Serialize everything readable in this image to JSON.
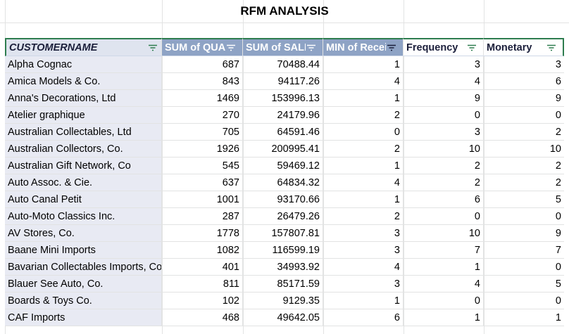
{
  "title": "RFM ANALYSIS",
  "headers": [
    {
      "label": "CUSTOMERNAME"
    },
    {
      "label": "SUM of QUA"
    },
    {
      "label": "SUM of SALI"
    },
    {
      "label": "MIN of Recei"
    },
    {
      "label": "Frequency"
    },
    {
      "label": "Monetary"
    }
  ],
  "rows": [
    {
      "customer": "Alpha Cognac",
      "qty": "687",
      "sales": "70488.44",
      "recency": "1",
      "frequency": "3",
      "monetary": "3"
    },
    {
      "customer": "Amica Models & Co.",
      "qty": "843",
      "sales": "94117.26",
      "recency": "4",
      "frequency": "4",
      "monetary": "6"
    },
    {
      "customer": "Anna's Decorations, Ltd",
      "qty": "1469",
      "sales": "153996.13",
      "recency": "1",
      "frequency": "9",
      "monetary": "9"
    },
    {
      "customer": "Atelier graphique",
      "qty": "270",
      "sales": "24179.96",
      "recency": "2",
      "frequency": "0",
      "monetary": "0"
    },
    {
      "customer": "Australian Collectables, Ltd",
      "qty": "705",
      "sales": "64591.46",
      "recency": "0",
      "frequency": "3",
      "monetary": "2"
    },
    {
      "customer": "Australian Collectors, Co.",
      "qty": "1926",
      "sales": "200995.41",
      "recency": "2",
      "frequency": "10",
      "monetary": "10"
    },
    {
      "customer": "Australian Gift Network, Co",
      "qty": "545",
      "sales": "59469.12",
      "recency": "1",
      "frequency": "2",
      "monetary": "2"
    },
    {
      "customer": "Auto Assoc. & Cie.",
      "qty": "637",
      "sales": "64834.32",
      "recency": "4",
      "frequency": "2",
      "monetary": "2"
    },
    {
      "customer": "Auto Canal Petit",
      "qty": "1001",
      "sales": "93170.66",
      "recency": "1",
      "frequency": "6",
      "monetary": "5"
    },
    {
      "customer": "Auto-Moto Classics Inc.",
      "qty": "287",
      "sales": "26479.26",
      "recency": "2",
      "frequency": "0",
      "monetary": "0"
    },
    {
      "customer": "AV Stores, Co.",
      "qty": "1778",
      "sales": "157807.81",
      "recency": "3",
      "frequency": "10",
      "monetary": "9"
    },
    {
      "customer": "Baane Mini Imports",
      "qty": "1082",
      "sales": "116599.19",
      "recency": "3",
      "frequency": "7",
      "monetary": "7"
    },
    {
      "customer": "Bavarian Collectables Imports, Co",
      "qty": "401",
      "sales": "34993.92",
      "recency": "4",
      "frequency": "1",
      "monetary": "0"
    },
    {
      "customer": "Blauer See Auto, Co.",
      "qty": "811",
      "sales": "85171.59",
      "recency": "3",
      "frequency": "4",
      "monetary": "5"
    },
    {
      "customer": "Boards & Toys Co.",
      "qty": "102",
      "sales": "9129.35",
      "recency": "1",
      "frequency": "0",
      "monetary": "0"
    },
    {
      "customer": "CAF Imports",
      "qty": "468",
      "sales": "49642.05",
      "recency": "6",
      "frequency": "1",
      "monetary": "1"
    }
  ],
  "colors": {
    "header_blue": "#8ea3c5",
    "first_col_bg": "#e8eaf3",
    "filter_green": "#2e7d4f",
    "border_green": "#2e7d4f"
  },
  "icons": {
    "filter": "filter-icon"
  }
}
